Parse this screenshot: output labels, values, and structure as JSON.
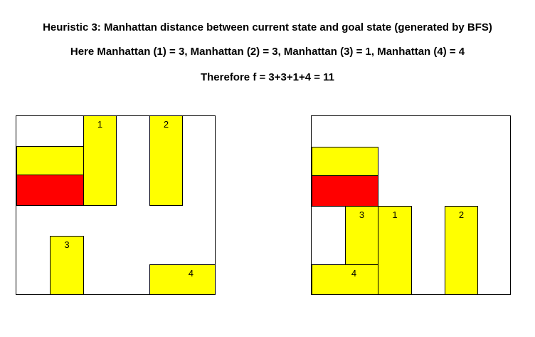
{
  "header": {
    "line1": "Heuristic 3: Manhattan distance between current state and goal state (generated by BFS)",
    "line2": "Here Manhattan (1) = 3, Manhattan (2) = 3, Manhattan (3) = 1, Manhattan (4) = 4",
    "line3": "Therefore f = 3+3+1+4 = 11"
  },
  "colors": {
    "vehicle": "#ffff00",
    "target": "#ff0000",
    "border": "#000000"
  },
  "current_state": {
    "blocks": [
      {
        "name": "block-1",
        "label": "1",
        "color": "yellow"
      },
      {
        "name": "block-2",
        "label": "2",
        "color": "yellow"
      },
      {
        "name": "block-3",
        "label": "3",
        "color": "yellow"
      },
      {
        "name": "block-4",
        "label": "4",
        "color": "yellow"
      },
      {
        "name": "horizontal-yellow",
        "label": "",
        "color": "yellow"
      },
      {
        "name": "red-target",
        "label": "",
        "color": "red"
      }
    ]
  },
  "goal_state": {
    "blocks": [
      {
        "name": "block-1",
        "label": "1",
        "color": "yellow"
      },
      {
        "name": "block-2",
        "label": "2",
        "color": "yellow"
      },
      {
        "name": "block-3",
        "label": "3",
        "color": "yellow"
      },
      {
        "name": "block-4",
        "label": "4",
        "color": "yellow"
      },
      {
        "name": "horizontal-yellow",
        "label": "",
        "color": "yellow"
      },
      {
        "name": "red-target",
        "label": "",
        "color": "red"
      }
    ]
  }
}
